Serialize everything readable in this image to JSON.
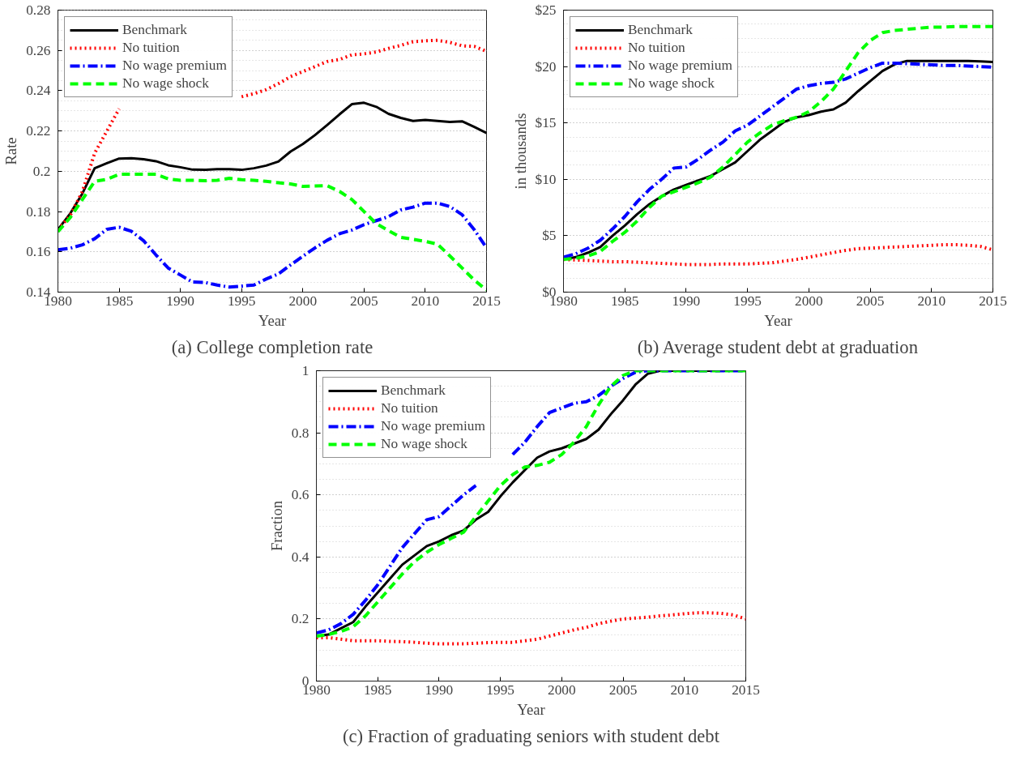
{
  "chart_data": [
    {
      "type": "line",
      "title": "(a) College completion rate",
      "xlabel": "Year",
      "ylabel": "Rate",
      "x": [
        1980,
        1981,
        1982,
        1983,
        1984,
        1985,
        1986,
        1987,
        1988,
        1989,
        1990,
        1991,
        1992,
        1993,
        1994,
        1995,
        1996,
        1997,
        1998,
        1999,
        2000,
        2001,
        2002,
        2003,
        2004,
        2005,
        2006,
        2007,
        2008,
        2009,
        2010,
        2011,
        2012,
        2013,
        2014,
        2015
      ],
      "xlim": [
        1980,
        2015
      ],
      "xticks": [
        1980,
        1985,
        1990,
        1995,
        2000,
        2005,
        2010,
        2015
      ],
      "ylim": [
        0.14,
        0.28
      ],
      "yticks": [
        {
          "value": 0.14,
          "label": "0.14"
        },
        {
          "value": 0.16,
          "label": "0.16"
        },
        {
          "value": 0.18,
          "label": "0.18"
        },
        {
          "value": 0.2,
          "label": "0.2"
        },
        {
          "value": 0.22,
          "label": "0.22"
        },
        {
          "value": 0.24,
          "label": "0.24"
        },
        {
          "value": 0.26,
          "label": "0.26"
        },
        {
          "value": 0.28,
          "label": "0.28"
        }
      ],
      "grid": "y",
      "legend": "top left",
      "series": [
        {
          "name": "Benchmark",
          "color": "#000000",
          "line_style": "solid",
          "values": [
            0.171,
            0.179,
            0.189,
            0.2015,
            0.204,
            0.2063,
            0.2065,
            0.206,
            0.205,
            0.203,
            0.202,
            0.2008,
            0.2007,
            0.201,
            0.201,
            0.2007,
            0.2015,
            0.2028,
            0.2048,
            0.2098,
            0.2135,
            0.218,
            0.223,
            0.2283,
            0.2333,
            0.234,
            0.232,
            0.2285,
            0.2265,
            0.225,
            0.2255,
            0.225,
            0.2245,
            0.2248,
            0.222,
            0.219
          ]
        },
        {
          "name": "No tuition",
          "color": "#ff0000",
          "line_style": "dotted",
          "values": [
            0.171,
            0.178,
            0.19,
            0.209,
            0.22,
            0.231,
            null,
            null,
            null,
            null,
            null,
            null,
            null,
            null,
            null,
            0.237,
            0.2385,
            0.2405,
            0.2435,
            0.247,
            0.2495,
            0.252,
            0.2545,
            0.2555,
            0.2578,
            0.2583,
            0.2592,
            0.261,
            0.2625,
            0.2643,
            0.2648,
            0.265,
            0.264,
            0.2623,
            0.262,
            0.2595
          ]
        },
        {
          "name": "No wage premium",
          "color": "#0000ff",
          "line_style": "dashdot",
          "values": [
            0.161,
            0.1618,
            0.1635,
            0.1665,
            0.1712,
            0.1722,
            0.1702,
            0.1655,
            0.1585,
            0.152,
            0.1485,
            0.145,
            0.1448,
            0.1435,
            0.1425,
            0.143,
            0.1435,
            0.1465,
            0.149,
            0.1535,
            0.1578,
            0.162,
            0.1658,
            0.169,
            0.1708,
            0.1735,
            0.1755,
            0.1775,
            0.1808,
            0.1822,
            0.1842,
            0.1842,
            0.1825,
            0.1785,
            0.171,
            0.162
          ]
        },
        {
          "name": "No wage shock",
          "color": "#00ff00",
          "line_style": "dashed",
          "values": [
            0.17,
            0.177,
            0.186,
            0.195,
            0.196,
            0.1985,
            0.1985,
            0.1985,
            0.1985,
            0.1962,
            0.1955,
            0.1955,
            0.1953,
            0.1955,
            0.1965,
            0.1958,
            0.1955,
            0.195,
            0.1943,
            0.1937,
            0.1925,
            0.1927,
            0.1928,
            0.19,
            0.186,
            0.18,
            0.174,
            0.1705,
            0.1672,
            0.1662,
            0.1652,
            0.1638,
            0.158,
            0.152,
            0.146,
            0.141
          ]
        }
      ]
    },
    {
      "type": "line",
      "title": "(b) Average student debt at graduation",
      "xlabel": "Year",
      "ylabel": "in thousands",
      "x": [
        1980,
        1981,
        1982,
        1983,
        1984,
        1985,
        1986,
        1987,
        1988,
        1989,
        1990,
        1991,
        1992,
        1993,
        1994,
        1995,
        1996,
        1997,
        1998,
        1999,
        2000,
        2001,
        2002,
        2003,
        2004,
        2005,
        2006,
        2007,
        2008,
        2009,
        2010,
        2011,
        2012,
        2013,
        2014,
        2015
      ],
      "xlim": [
        1980,
        2015
      ],
      "xticks": [
        1980,
        1985,
        1990,
        1995,
        2000,
        2005,
        2010,
        2015
      ],
      "ylim": [
        0,
        25
      ],
      "yticks": [
        {
          "value": 0,
          "label": "$0"
        },
        {
          "value": 5,
          "label": "$5"
        },
        {
          "value": 10,
          "label": "$10"
        },
        {
          "value": 15,
          "label": "$15"
        },
        {
          "value": 20,
          "label": "$20"
        },
        {
          "value": 25,
          "label": "$25"
        }
      ],
      "grid": "y",
      "legend": "top left",
      "series": [
        {
          "name": "Benchmark",
          "color": "#000000",
          "line_style": "solid",
          "values": [
            2.9,
            3.1,
            3.5,
            4.0,
            5.0,
            5.9,
            6.9,
            7.8,
            8.5,
            9.1,
            9.5,
            9.9,
            10.3,
            10.9,
            11.5,
            12.5,
            13.5,
            14.3,
            15.1,
            15.5,
            15.7,
            16.0,
            16.2,
            16.8,
            17.8,
            18.7,
            19.6,
            20.2,
            20.5,
            20.5,
            20.5,
            20.5,
            20.5,
            20.5,
            20.45,
            20.4
          ]
        },
        {
          "name": "No tuition",
          "color": "#ff0000",
          "line_style": "dotted",
          "values": [
            2.9,
            2.85,
            2.8,
            2.75,
            2.7,
            2.7,
            2.65,
            2.6,
            2.55,
            2.5,
            2.45,
            2.45,
            2.45,
            2.5,
            2.5,
            2.5,
            2.55,
            2.6,
            2.75,
            2.9,
            3.1,
            3.3,
            3.5,
            3.7,
            3.85,
            3.9,
            3.95,
            4.0,
            4.05,
            4.1,
            4.15,
            4.2,
            4.2,
            4.15,
            4.05,
            3.75
          ]
        },
        {
          "name": "No wage premium",
          "color": "#0000ff",
          "line_style": "dashdot",
          "values": [
            3.1,
            3.4,
            3.9,
            4.6,
            5.6,
            6.7,
            8.0,
            9.1,
            10.0,
            11.0,
            11.1,
            11.8,
            12.6,
            13.3,
            14.3,
            14.8,
            15.6,
            16.4,
            17.2,
            18.0,
            18.3,
            18.5,
            18.6,
            18.9,
            19.4,
            19.9,
            20.3,
            20.3,
            20.25,
            20.2,
            20.15,
            20.1,
            20.1,
            20.05,
            20.0,
            19.95
          ]
        },
        {
          "name": "No wage shock",
          "color": "#00ff00",
          "line_style": "dashed",
          "values": [
            2.9,
            3.0,
            3.2,
            3.6,
            4.5,
            5.3,
            6.3,
            7.5,
            8.5,
            8.9,
            9.3,
            9.7,
            10.2,
            11.1,
            12.2,
            13.3,
            14.1,
            14.8,
            15.2,
            15.5,
            16.0,
            16.9,
            18.0,
            19.6,
            21.2,
            22.3,
            23.0,
            23.2,
            23.3,
            23.4,
            23.5,
            23.5,
            23.55,
            23.55,
            23.55,
            23.55
          ]
        }
      ]
    },
    {
      "type": "line",
      "title": "(c) Fraction of graduating seniors with student debt",
      "xlabel": "Year",
      "ylabel": "Fraction",
      "x": [
        1980,
        1981,
        1982,
        1983,
        1984,
        1985,
        1986,
        1987,
        1988,
        1989,
        1990,
        1991,
        1992,
        1993,
        1994,
        1995,
        1996,
        1997,
        1998,
        1999,
        2000,
        2001,
        2002,
        2003,
        2004,
        2005,
        2006,
        2007,
        2008,
        2009,
        2010,
        2011,
        2012,
        2013,
        2014,
        2015
      ],
      "xlim": [
        1980,
        2015
      ],
      "xticks": [
        1980,
        1985,
        1990,
        1995,
        2000,
        2005,
        2010,
        2015
      ],
      "ylim": [
        0,
        1
      ],
      "yticks": [
        0,
        {
          "value": 0.2,
          "label": "0.2"
        },
        {
          "value": 0.4,
          "label": "0.4"
        },
        {
          "value": 0.6,
          "label": "0.6"
        },
        {
          "value": 0.8,
          "label": "0.8"
        },
        1
      ],
      "grid": "y",
      "legend": "top left",
      "series": [
        {
          "name": "Benchmark",
          "color": "#000000",
          "line_style": "solid",
          "values": [
            0.145,
            0.15,
            0.17,
            0.19,
            0.24,
            0.285,
            0.33,
            0.375,
            0.405,
            0.435,
            0.45,
            0.47,
            0.485,
            0.52,
            0.545,
            0.595,
            0.64,
            0.68,
            0.72,
            0.74,
            0.75,
            0.765,
            0.78,
            0.81,
            0.86,
            0.905,
            0.955,
            0.99,
            1.0,
            1.0,
            1.0,
            1.0,
            1.0,
            1.0,
            1.0,
            1.0
          ]
        },
        {
          "name": "No tuition",
          "color": "#ff0000",
          "line_style": "dotted",
          "values": [
            0.14,
            0.14,
            0.135,
            0.13,
            0.13,
            0.13,
            0.128,
            0.127,
            0.125,
            0.122,
            0.12,
            0.12,
            0.12,
            0.122,
            0.124,
            0.125,
            0.125,
            0.13,
            0.135,
            0.145,
            0.155,
            0.165,
            0.173,
            0.185,
            0.193,
            0.2,
            0.203,
            0.206,
            0.21,
            0.213,
            0.217,
            0.22,
            0.22,
            0.218,
            0.213,
            0.2
          ]
        },
        {
          "name": "No wage premium",
          "color": "#0000ff",
          "line_style": "dashdot",
          "values": [
            0.155,
            0.165,
            0.185,
            0.215,
            0.26,
            0.31,
            0.37,
            0.43,
            0.475,
            0.52,
            0.53,
            0.565,
            0.6,
            0.63,
            null,
            null,
            0.73,
            0.77,
            0.82,
            0.865,
            0.88,
            0.895,
            0.9,
            0.92,
            0.95,
            0.975,
            0.995,
            1.0,
            1.0,
            1.0,
            1.0,
            1.0,
            1.0,
            1.0,
            1.0,
            1.0
          ]
        },
        {
          "name": "No wage shock",
          "color": "#00ff00",
          "line_style": "dashed",
          "values": [
            0.145,
            0.15,
            0.16,
            0.175,
            0.21,
            0.255,
            0.3,
            0.345,
            0.385,
            0.415,
            0.44,
            0.46,
            0.48,
            0.53,
            0.58,
            0.63,
            0.665,
            0.69,
            0.695,
            0.705,
            0.73,
            0.77,
            0.82,
            0.89,
            0.95,
            0.985,
            1.0,
            1.0,
            1.0,
            1.0,
            1.0,
            1.0,
            1.0,
            1.0,
            1.0,
            1.0
          ]
        }
      ]
    }
  ]
}
